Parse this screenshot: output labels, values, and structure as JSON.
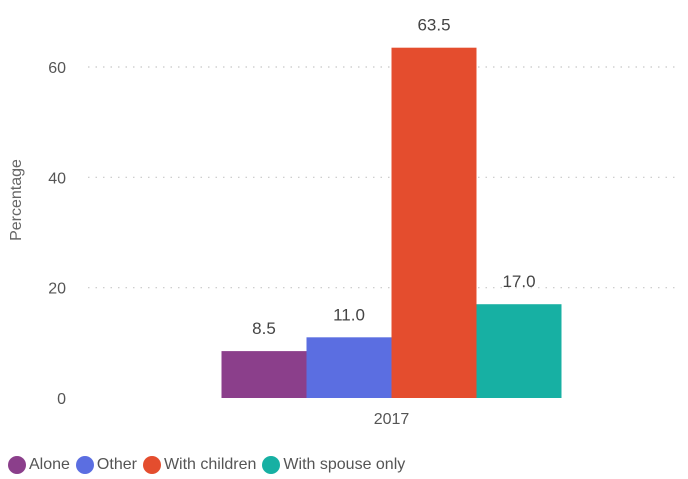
{
  "chart_data": {
    "type": "bar",
    "categories": [
      "2017"
    ],
    "series": [
      {
        "name": "Alone",
        "values": [
          8.5
        ],
        "color": "#8b3f8b"
      },
      {
        "name": "Other",
        "values": [
          11.0
        ],
        "color": "#5b6ee1"
      },
      {
        "name": "With children",
        "values": [
          63.5
        ],
        "color": "#e44d2e"
      },
      {
        "name": "With spouse only",
        "values": [
          17.0
        ],
        "color": "#17b0a3"
      }
    ],
    "data_labels": [
      "8.5",
      "11.0",
      "63.5",
      "17.0"
    ],
    "title": "",
    "xlabel": "",
    "ylabel": "Percentage",
    "ylim": [
      0,
      65
    ],
    "yticks": [
      0,
      20,
      40,
      60
    ],
    "grid": true,
    "legend_position": "bottom-left"
  }
}
